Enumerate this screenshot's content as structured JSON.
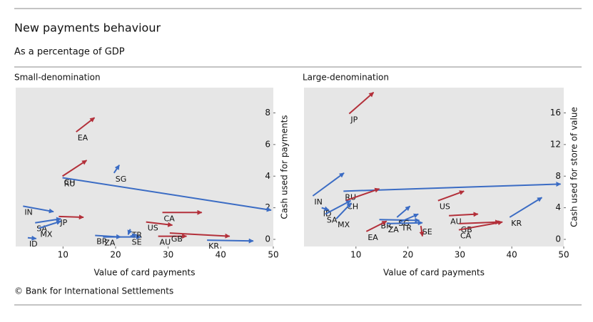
{
  "title": "New payments behaviour",
  "subtitle": "As a percentage of GDP",
  "footer": "© Bank for International Settlements",
  "chart_data": [
    {
      "type": "arrow",
      "title": "Small-denomination",
      "x_label": "Value of card payments",
      "y_label": "Cash used for payments",
      "xlim": [
        1,
        50
      ],
      "ylim": [
        -0.45,
        9.6
      ],
      "xticks": [
        10,
        20,
        30,
        40,
        50
      ],
      "yticks": [
        0,
        2,
        4,
        6,
        8
      ],
      "grid": false,
      "arrows": [
        {
          "label": "EA",
          "color": "#b3303a",
          "x": [
            12.5,
            16
          ],
          "y": [
            6.8,
            7.7
          ]
        },
        {
          "label": "CH",
          "color": "#b3303a",
          "x": [
            9.9,
            14.5
          ],
          "y": [
            4.0,
            5.0
          ]
        },
        {
          "label": "RU",
          "color": "#3b6cc4",
          "x": [
            9.9,
            49.6
          ],
          "y": [
            3.9,
            1.85
          ]
        },
        {
          "label": "SG",
          "color": "#3b6cc4",
          "x": [
            19.7,
            20.7
          ],
          "y": [
            4.2,
            4.7
          ]
        },
        {
          "label": "IN",
          "color": "#3b6cc4",
          "x": [
            2.4,
            8.2
          ],
          "y": [
            2.1,
            1.75
          ]
        },
        {
          "label": "JP",
          "color": "#b3303a",
          "x": [
            9.2,
            13.9
          ],
          "y": [
            1.45,
            1.4
          ]
        },
        {
          "label": "SA",
          "color": "#3b6cc4",
          "x": [
            4.7,
            9.6
          ],
          "y": [
            1.05,
            1.3
          ]
        },
        {
          "label": "MX",
          "color": "#3b6cc4",
          "x": [
            5.4,
            9.6
          ],
          "y": [
            0.7,
            1.15
          ]
        },
        {
          "label": "ID",
          "color": "#3b6cc4",
          "x": [
            3.3,
            4.9
          ],
          "y": [
            0.1,
            0.05
          ]
        },
        {
          "label": "BR",
          "color": "#3b6cc4",
          "x": [
            16.1,
            21
          ],
          "y": [
            0.25,
            0.15
          ]
        },
        {
          "label": "ZA",
          "color": "#3b6cc4",
          "x": [
            17.6,
            24.8
          ],
          "y": [
            0.15,
            0.15
          ]
        },
        {
          "label": "TR",
          "color": "#3b6cc4",
          "x": [
            22.8,
            22.4
          ],
          "y": [
            0.65,
            0.3
          ]
        },
        {
          "label": "SE",
          "color": "#3b6cc4",
          "x": [
            22.8,
            24
          ],
          "y": [
            0.2,
            0.3
          ]
        },
        {
          "label": "US",
          "color": "#b3303a",
          "x": [
            25.8,
            30.8
          ],
          "y": [
            1.1,
            0.9
          ]
        },
        {
          "label": "CA",
          "color": "#b3303a",
          "x": [
            28.9,
            36.4
          ],
          "y": [
            1.7,
            1.7
          ]
        },
        {
          "label": "AU",
          "color": "#b3303a",
          "x": [
            28.1,
            33.5
          ],
          "y": [
            0.2,
            0.2
          ]
        },
        {
          "label": "GB",
          "color": "#b3303a",
          "x": [
            30.3,
            41.7
          ],
          "y": [
            0.4,
            0.2
          ]
        },
        {
          "label": "KR",
          "color": "#3b6cc4",
          "x": [
            37.4,
            46.2
          ],
          "y": [
            -0.05,
            -0.1
          ]
        }
      ]
    },
    {
      "type": "arrow",
      "title": "Large-denomination",
      "x_label": "Value of card payments",
      "y_label": "Cash used for store of value",
      "xlim": [
        0,
        50
      ],
      "ylim": [
        -0.9,
        19.2
      ],
      "xticks": [
        10,
        20,
        30,
        40,
        50
      ],
      "yticks": [
        0,
        4,
        8,
        12,
        16
      ],
      "grid": false,
      "arrows": [
        {
          "label": "JP",
          "color": "#b3303a",
          "x": [
            8.7,
            13.4
          ],
          "y": [
            15.9,
            18.6
          ]
        },
        {
          "label": "IN",
          "color": "#3b6cc4",
          "x": [
            1.7,
            7.7
          ],
          "y": [
            5.5,
            8.4
          ]
        },
        {
          "label": "RU",
          "color": "#3b6cc4",
          "x": [
            7.6,
            49.4
          ],
          "y": [
            6.1,
            7.0
          ]
        },
        {
          "label": "CH",
          "color": "#b3303a",
          "x": [
            8,
            14.5
          ],
          "y": [
            4.9,
            6.4
          ]
        },
        {
          "label": "ID",
          "color": "#3b6cc4",
          "x": [
            3.4,
            4.8
          ],
          "y": [
            4.0,
            3.7
          ]
        },
        {
          "label": "SA",
          "color": "#3b6cc4",
          "x": [
            4.1,
            9.0
          ],
          "y": [
            3.2,
            4.9
          ]
        },
        {
          "label": "MX",
          "color": "#3b6cc4",
          "x": [
            6.2,
            9.1
          ],
          "y": [
            2.6,
            4.6
          ]
        },
        {
          "label": "BR",
          "color": "#3b6cc4",
          "x": [
            14.5,
            22.2
          ],
          "y": [
            2.5,
            2.4
          ]
        },
        {
          "label": "SG",
          "color": "#3b6cc4",
          "x": [
            17.9,
            20.4
          ],
          "y": [
            2.8,
            4.2
          ]
        },
        {
          "label": "TR",
          "color": "#3b6cc4",
          "x": [
            18.5,
            22.0
          ],
          "y": [
            2.2,
            3.2
          ]
        },
        {
          "label": "EA",
          "color": "#b3303a",
          "x": [
            12,
            15.9
          ],
          "y": [
            1.0,
            2.3
          ]
        },
        {
          "label": "ZA",
          "color": "#3b6cc4",
          "x": [
            15.9,
            22.8
          ],
          "y": [
            2.0,
            2.1
          ]
        },
        {
          "label": "SE",
          "color": "#b3303a",
          "x": [
            22.5,
            22.8
          ],
          "y": [
            1.7,
            0.4
          ]
        },
        {
          "label": "US",
          "color": "#b3303a",
          "x": [
            25.8,
            30.8
          ],
          "y": [
            4.9,
            6.1
          ]
        },
        {
          "label": "AU",
          "color": "#b3303a",
          "x": [
            27.9,
            33.5
          ],
          "y": [
            3.0,
            3.2
          ]
        },
        {
          "label": "GB",
          "color": "#b3303a",
          "x": [
            29.9,
            37.7
          ],
          "y": [
            2.0,
            2.2
          ]
        },
        {
          "label": "CA",
          "color": "#b3303a",
          "x": [
            29.8,
            38.2
          ],
          "y": [
            1.2,
            2.2
          ]
        },
        {
          "label": "KR",
          "color": "#3b6cc4",
          "x": [
            39.6,
            45.8
          ],
          "y": [
            2.8,
            5.3
          ]
        }
      ]
    }
  ]
}
